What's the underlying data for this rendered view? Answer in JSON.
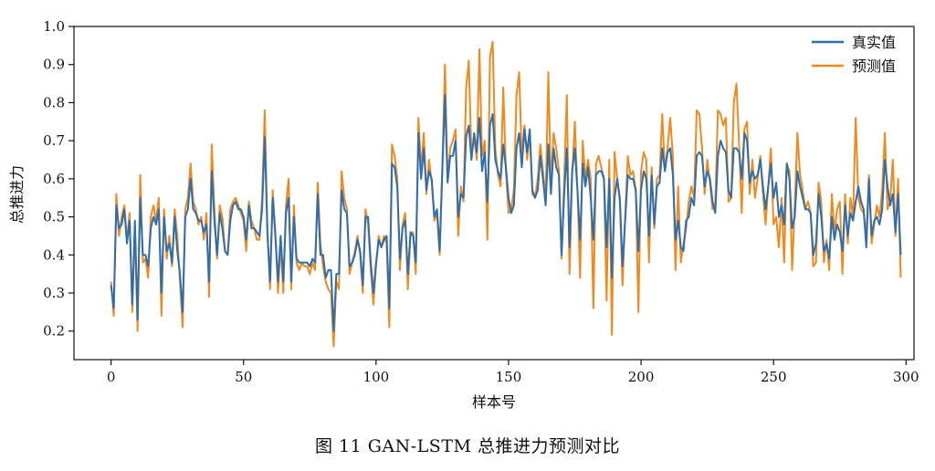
{
  "figure": {
    "caption": "图 11    GAN-LSTM 总推进力预测对比"
  },
  "colors": {
    "true_series": "#2f6ead",
    "pred_series": "#f0891f",
    "axis": "#111111"
  },
  "chart_data": {
    "type": "line",
    "title": "",
    "xlabel": "样本号",
    "ylabel": "总推进力",
    "xlim": [
      -14,
      303
    ],
    "ylim": [
      0.125,
      1.0
    ],
    "xticks": [
      0,
      50,
      100,
      150,
      200,
      250,
      300
    ],
    "yticks": [
      0.2,
      0.3,
      0.4,
      0.5,
      0.6,
      0.7,
      0.8,
      0.9,
      1.0
    ],
    "xtick_labels": [
      "0",
      "50",
      "100",
      "150",
      "200",
      "250",
      "300"
    ],
    "ytick_labels": [
      "0.2",
      "0.3",
      "0.4",
      "0.5",
      "0.6",
      "0.7",
      "0.8",
      "0.9",
      "1.0"
    ],
    "legend_position": "top-right",
    "series": [
      {
        "name": "真实值",
        "values": [
          0.32,
          0.26,
          0.53,
          0.47,
          0.48,
          0.52,
          0.43,
          0.49,
          0.27,
          0.49,
          0.23,
          0.55,
          0.4,
          0.4,
          0.37,
          0.47,
          0.5,
          0.48,
          0.52,
          0.3,
          0.5,
          0.41,
          0.43,
          0.38,
          0.5,
          0.41,
          0.35,
          0.25,
          0.5,
          0.52,
          0.6,
          0.52,
          0.51,
          0.49,
          0.49,
          0.46,
          0.48,
          0.33,
          0.62,
          0.49,
          0.4,
          0.51,
          0.47,
          0.41,
          0.4,
          0.49,
          0.53,
          0.54,
          0.52,
          0.52,
          0.5,
          0.44,
          0.53,
          0.47,
          0.47,
          0.46,
          0.45,
          0.52,
          0.71,
          0.46,
          0.33,
          0.55,
          0.45,
          0.33,
          0.45,
          0.33,
          0.51,
          0.55,
          0.33,
          0.5,
          0.39,
          0.38,
          0.38,
          0.38,
          0.38,
          0.37,
          0.39,
          0.38,
          0.56,
          0.4,
          0.4,
          0.34,
          0.36,
          0.36,
          0.2,
          0.35,
          0.35,
          0.57,
          0.52,
          0.51,
          0.37,
          0.38,
          0.4,
          0.44,
          0.41,
          0.32,
          0.5,
          0.5,
          0.38,
          0.3,
          0.38,
          0.44,
          0.42,
          0.44,
          0.45,
          0.26,
          0.64,
          0.63,
          0.58,
          0.39,
          0.47,
          0.49,
          0.35,
          0.46,
          0.45,
          0.38,
          0.72,
          0.6,
          0.68,
          0.57,
          0.62,
          0.6,
          0.5,
          0.52,
          0.41,
          0.62,
          0.82,
          0.59,
          0.66,
          0.66,
          0.7,
          0.5,
          0.56,
          0.55,
          0.71,
          0.74,
          0.65,
          0.72,
          0.67,
          0.76,
          0.62,
          0.67,
          0.54,
          0.74,
          0.77,
          0.65,
          0.62,
          0.6,
          0.69,
          0.63,
          0.55,
          0.51,
          0.53,
          0.68,
          0.72,
          0.63,
          0.73,
          0.67,
          0.73,
          0.57,
          0.55,
          0.57,
          0.66,
          0.6,
          0.53,
          0.69,
          0.56,
          0.68,
          0.63,
          0.61,
          0.4,
          0.56,
          0.68,
          0.42,
          0.62,
          0.68,
          0.57,
          0.44,
          0.64,
          0.58,
          0.63,
          0.55,
          0.44,
          0.61,
          0.62,
          0.62,
          0.6,
          0.42,
          0.6,
          0.34,
          0.55,
          0.6,
          0.55,
          0.37,
          0.49,
          0.61,
          0.6,
          0.6,
          0.57,
          0.41,
          0.57,
          0.62,
          0.6,
          0.45,
          0.61,
          0.48,
          0.58,
          0.59,
          0.68,
          0.62,
          0.67,
          0.68,
          0.61,
          0.44,
          0.49,
          0.42,
          0.41,
          0.49,
          0.5,
          0.55,
          0.53,
          0.66,
          0.67,
          0.66,
          0.58,
          0.62,
          0.6,
          0.54,
          0.51,
          0.66,
          0.7,
          0.68,
          0.67,
          0.57,
          0.55,
          0.68,
          0.68,
          0.67,
          0.6,
          0.72,
          0.7,
          0.59,
          0.62,
          0.6,
          0.61,
          0.65,
          0.58,
          0.52,
          0.58,
          0.64,
          0.55,
          0.59,
          0.5,
          0.53,
          0.48,
          0.64,
          0.6,
          0.47,
          0.5,
          0.62,
          0.58,
          0.55,
          0.52,
          0.52,
          0.51,
          0.4,
          0.43,
          0.56,
          0.5,
          0.41,
          0.43,
          0.39,
          0.5,
          0.44,
          0.48,
          0.46,
          0.41,
          0.53,
          0.45,
          0.51,
          0.49,
          0.54,
          0.58,
          0.54,
          0.52,
          0.42,
          0.6,
          0.45,
          0.49,
          0.5,
          0.48,
          0.52,
          0.65,
          0.58,
          0.53,
          0.56,
          0.46,
          0.56,
          0.4
        ]
      },
      {
        "name": "预测值",
        "values": [
          0.33,
          0.24,
          0.56,
          0.45,
          0.5,
          0.53,
          0.44,
          0.51,
          0.25,
          0.47,
          0.2,
          0.61,
          0.38,
          0.39,
          0.34,
          0.5,
          0.53,
          0.49,
          0.55,
          0.24,
          0.52,
          0.39,
          0.45,
          0.37,
          0.52,
          0.45,
          0.33,
          0.21,
          0.52,
          0.55,
          0.64,
          0.54,
          0.52,
          0.48,
          0.5,
          0.44,
          0.51,
          0.29,
          0.69,
          0.52,
          0.39,
          0.53,
          0.5,
          0.41,
          0.4,
          0.52,
          0.54,
          0.55,
          0.53,
          0.51,
          0.49,
          0.41,
          0.54,
          0.49,
          0.47,
          0.44,
          0.44,
          0.55,
          0.78,
          0.46,
          0.31,
          0.57,
          0.46,
          0.3,
          0.43,
          0.3,
          0.53,
          0.6,
          0.31,
          0.53,
          0.38,
          0.36,
          0.38,
          0.37,
          0.37,
          0.35,
          0.38,
          0.36,
          0.59,
          0.43,
          0.37,
          0.33,
          0.31,
          0.3,
          0.16,
          0.33,
          0.31,
          0.62,
          0.55,
          0.52,
          0.35,
          0.38,
          0.41,
          0.45,
          0.4,
          0.3,
          0.52,
          0.48,
          0.36,
          0.27,
          0.37,
          0.45,
          0.42,
          0.45,
          0.43,
          0.21,
          0.69,
          0.66,
          0.6,
          0.36,
          0.48,
          0.51,
          0.31,
          0.45,
          0.46,
          0.35,
          0.76,
          0.62,
          0.72,
          0.56,
          0.65,
          0.59,
          0.49,
          0.51,
          0.4,
          0.63,
          0.9,
          0.6,
          0.68,
          0.7,
          0.73,
          0.45,
          0.58,
          0.54,
          0.84,
          0.91,
          0.66,
          0.71,
          0.65,
          0.94,
          0.66,
          0.7,
          0.44,
          0.92,
          0.96,
          0.68,
          0.61,
          0.58,
          0.84,
          0.62,
          0.51,
          0.52,
          0.57,
          0.82,
          0.88,
          0.66,
          0.74,
          0.65,
          0.72,
          0.56,
          0.55,
          0.6,
          0.69,
          0.62,
          0.54,
          0.88,
          0.58,
          0.72,
          0.68,
          0.62,
          0.39,
          0.6,
          0.82,
          0.35,
          0.61,
          0.75,
          0.57,
          0.34,
          0.7,
          0.6,
          0.65,
          0.6,
          0.26,
          0.64,
          0.66,
          0.63,
          0.6,
          0.28,
          0.65,
          0.19,
          0.67,
          0.6,
          0.54,
          0.32,
          0.5,
          0.66,
          0.61,
          0.62,
          0.57,
          0.25,
          0.62,
          0.67,
          0.65,
          0.38,
          0.63,
          0.47,
          0.6,
          0.61,
          0.77,
          0.62,
          0.68,
          0.76,
          0.66,
          0.36,
          0.58,
          0.38,
          0.43,
          0.47,
          0.54,
          0.58,
          0.55,
          0.78,
          0.77,
          0.68,
          0.56,
          0.65,
          0.59,
          0.52,
          0.53,
          0.78,
          0.77,
          0.74,
          0.76,
          0.54,
          0.55,
          0.8,
          0.85,
          0.69,
          0.51,
          0.73,
          0.75,
          0.56,
          0.65,
          0.55,
          0.6,
          0.66,
          0.56,
          0.48,
          0.58,
          0.68,
          0.48,
          0.5,
          0.42,
          0.55,
          0.38,
          0.64,
          0.62,
          0.36,
          0.53,
          0.72,
          0.61,
          0.57,
          0.52,
          0.54,
          0.51,
          0.37,
          0.38,
          0.59,
          0.54,
          0.38,
          0.44,
          0.36,
          0.56,
          0.46,
          0.52,
          0.54,
          0.35,
          0.56,
          0.43,
          0.55,
          0.5,
          0.76,
          0.55,
          0.52,
          0.51,
          0.45,
          0.61,
          0.43,
          0.48,
          0.53,
          0.5,
          0.57,
          0.72,
          0.52,
          0.54,
          0.65,
          0.45,
          0.6,
          0.34
        ]
      }
    ]
  }
}
